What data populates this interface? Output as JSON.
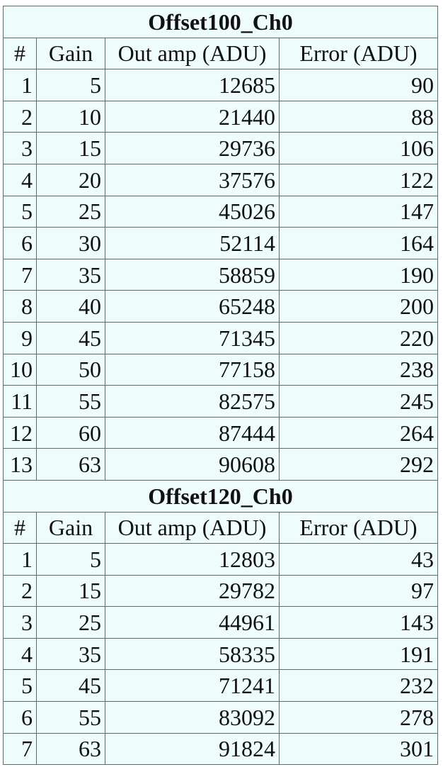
{
  "tables": [
    {
      "title": "Offset100_Ch0",
      "headers": [
        "#",
        "Gain",
        "Out amp (ADU)",
        "Error (ADU)"
      ],
      "rows": [
        [
          "1",
          "5",
          "12685",
          "90"
        ],
        [
          "2",
          "10",
          "21440",
          "88"
        ],
        [
          "3",
          "15",
          "29736",
          "106"
        ],
        [
          "4",
          "20",
          "37576",
          "122"
        ],
        [
          "5",
          "25",
          "45026",
          "147"
        ],
        [
          "6",
          "30",
          "52114",
          "164"
        ],
        [
          "7",
          "35",
          "58859",
          "190"
        ],
        [
          "8",
          "40",
          "65248",
          "200"
        ],
        [
          "9",
          "45",
          "71345",
          "220"
        ],
        [
          "10",
          "50",
          "77158",
          "238"
        ],
        [
          "11",
          "55",
          "82575",
          "245"
        ],
        [
          "12",
          "60",
          "87444",
          "264"
        ],
        [
          "13",
          "63",
          "90608",
          "292"
        ]
      ]
    },
    {
      "title": "Offset120_Ch0",
      "headers": [
        "#",
        "Gain",
        "Out amp (ADU)",
        "Error (ADU)"
      ],
      "rows": [
        [
          "1",
          "5",
          "12803",
          "43"
        ],
        [
          "2",
          "15",
          "29782",
          "97"
        ],
        [
          "3",
          "25",
          "44961",
          "143"
        ],
        [
          "4",
          "35",
          "58335",
          "191"
        ],
        [
          "5",
          "45",
          "71241",
          "232"
        ],
        [
          "6",
          "55",
          "83092",
          "278"
        ],
        [
          "7",
          "63",
          "91824",
          "301"
        ]
      ]
    }
  ],
  "colors": {
    "background": "#effcfc",
    "border": "#5f6b6b",
    "text": "#111111"
  }
}
